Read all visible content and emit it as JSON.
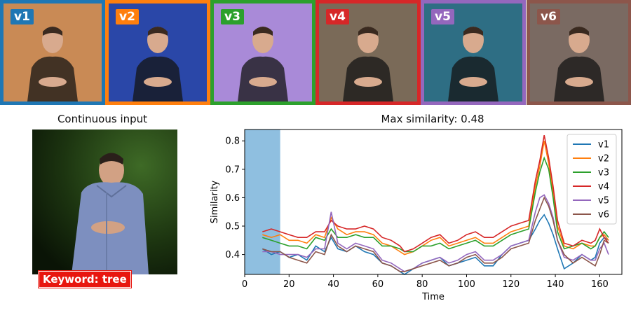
{
  "thumbnails": [
    {
      "label": "v1",
      "color": "#1f77b4",
      "bg": "#c98a55"
    },
    {
      "label": "v2",
      "color": "#ff7f0e",
      "bg": "#2a47a8"
    },
    {
      "label": "v3",
      "color": "#2ca02c",
      "bg": "#a98ad8"
    },
    {
      "label": "v4",
      "color": "#d62728",
      "bg": "#7a6a58"
    },
    {
      "label": "v5",
      "color": "#9467bd",
      "bg": "#2e6e84"
    },
    {
      "label": "v6",
      "color": "#8c564b",
      "bg": "#7a6a62"
    }
  ],
  "input": {
    "title": "Continuous input",
    "keyword": "Keyword: tree"
  },
  "chart_data": {
    "type": "line",
    "title": "Max similarity: 0.48",
    "xlabel": "Time",
    "ylabel": "Similarity",
    "xlim": [
      0,
      170
    ],
    "ylim": [
      0.33,
      0.84
    ],
    "xticks": [
      0,
      20,
      40,
      60,
      80,
      100,
      120,
      140,
      160
    ],
    "yticks": [
      0.4,
      0.5,
      0.6,
      0.7,
      0.8
    ],
    "highlight_span": [
      0,
      16
    ],
    "highlight_color": "#8fbfe0",
    "legend": "top-right",
    "grid": false,
    "x": [
      8,
      12,
      16,
      20,
      24,
      28,
      32,
      36,
      39,
      42,
      46,
      50,
      54,
      58,
      62,
      66,
      70,
      72,
      76,
      80,
      84,
      88,
      92,
      96,
      100,
      104,
      108,
      112,
      116,
      120,
      124,
      128,
      131,
      133,
      135,
      137,
      139,
      141,
      144,
      148,
      152,
      156,
      158,
      160,
      162,
      164
    ],
    "series": [
      {
        "name": "v1",
        "color": "#1f77b4",
        "values": [
          0.42,
          0.4,
          0.41,
          0.39,
          0.4,
          0.38,
          0.43,
          0.41,
          0.46,
          0.42,
          0.41,
          0.43,
          0.41,
          0.4,
          0.37,
          0.36,
          0.34,
          0.33,
          0.35,
          0.37,
          0.38,
          0.39,
          0.36,
          0.37,
          0.38,
          0.39,
          0.36,
          0.36,
          0.4,
          0.43,
          0.44,
          0.45,
          0.49,
          0.52,
          0.54,
          0.51,
          0.47,
          0.42,
          0.35,
          0.37,
          0.4,
          0.38,
          0.39,
          0.44,
          0.46,
          0.45
        ]
      },
      {
        "name": "v2",
        "color": "#ff7f0e",
        "values": [
          0.47,
          0.46,
          0.47,
          0.45,
          0.45,
          0.44,
          0.47,
          0.46,
          0.53,
          0.49,
          0.47,
          0.48,
          0.48,
          0.47,
          0.44,
          0.43,
          0.41,
          0.4,
          0.41,
          0.43,
          0.45,
          0.46,
          0.43,
          0.44,
          0.45,
          0.46,
          0.44,
          0.44,
          0.46,
          0.48,
          0.49,
          0.5,
          0.64,
          0.71,
          0.8,
          0.72,
          0.62,
          0.5,
          0.43,
          0.42,
          0.44,
          0.43,
          0.43,
          0.46,
          0.47,
          0.45
        ]
      },
      {
        "name": "v3",
        "color": "#2ca02c",
        "values": [
          0.46,
          0.45,
          0.44,
          0.43,
          0.43,
          0.42,
          0.46,
          0.45,
          0.49,
          0.46,
          0.46,
          0.47,
          0.46,
          0.46,
          0.43,
          0.43,
          0.42,
          0.41,
          0.41,
          0.43,
          0.43,
          0.44,
          0.42,
          0.43,
          0.44,
          0.45,
          0.43,
          0.43,
          0.45,
          0.47,
          0.48,
          0.49,
          0.62,
          0.69,
          0.74,
          0.7,
          0.6,
          0.48,
          0.42,
          0.43,
          0.44,
          0.42,
          0.43,
          0.46,
          0.48,
          0.46
        ]
      },
      {
        "name": "v4",
        "color": "#d62728",
        "values": [
          0.48,
          0.49,
          0.48,
          0.47,
          0.46,
          0.46,
          0.48,
          0.48,
          0.52,
          0.5,
          0.49,
          0.49,
          0.5,
          0.49,
          0.46,
          0.45,
          0.43,
          0.41,
          0.42,
          0.44,
          0.46,
          0.47,
          0.44,
          0.45,
          0.47,
          0.48,
          0.46,
          0.46,
          0.48,
          0.5,
          0.51,
          0.52,
          0.66,
          0.73,
          0.82,
          0.74,
          0.64,
          0.52,
          0.44,
          0.43,
          0.45,
          0.44,
          0.45,
          0.49,
          0.46,
          0.44
        ]
      },
      {
        "name": "v5",
        "color": "#9467bd",
        "values": [
          0.41,
          0.41,
          0.4,
          0.4,
          0.4,
          0.39,
          0.42,
          0.42,
          0.55,
          0.44,
          0.42,
          0.44,
          0.43,
          0.42,
          0.38,
          0.37,
          0.35,
          0.34,
          0.35,
          0.37,
          0.38,
          0.39,
          0.37,
          0.38,
          0.4,
          0.41,
          0.38,
          0.38,
          0.4,
          0.43,
          0.44,
          0.45,
          0.55,
          0.6,
          0.61,
          0.58,
          0.53,
          0.45,
          0.39,
          0.38,
          0.4,
          0.38,
          0.38,
          0.42,
          0.44,
          0.4
        ]
      },
      {
        "name": "v6",
        "color": "#8c564b",
        "values": [
          0.42,
          0.41,
          0.41,
          0.39,
          0.38,
          0.37,
          0.41,
          0.4,
          0.47,
          0.43,
          0.41,
          0.43,
          0.42,
          0.41,
          0.37,
          0.36,
          0.34,
          0.34,
          0.35,
          0.36,
          0.37,
          0.38,
          0.36,
          0.37,
          0.39,
          0.4,
          0.37,
          0.37,
          0.39,
          0.42,
          0.43,
          0.44,
          0.52,
          0.56,
          0.6,
          0.57,
          0.52,
          0.45,
          0.4,
          0.37,
          0.39,
          0.37,
          0.36,
          0.4,
          0.45,
          0.44
        ]
      }
    ]
  }
}
